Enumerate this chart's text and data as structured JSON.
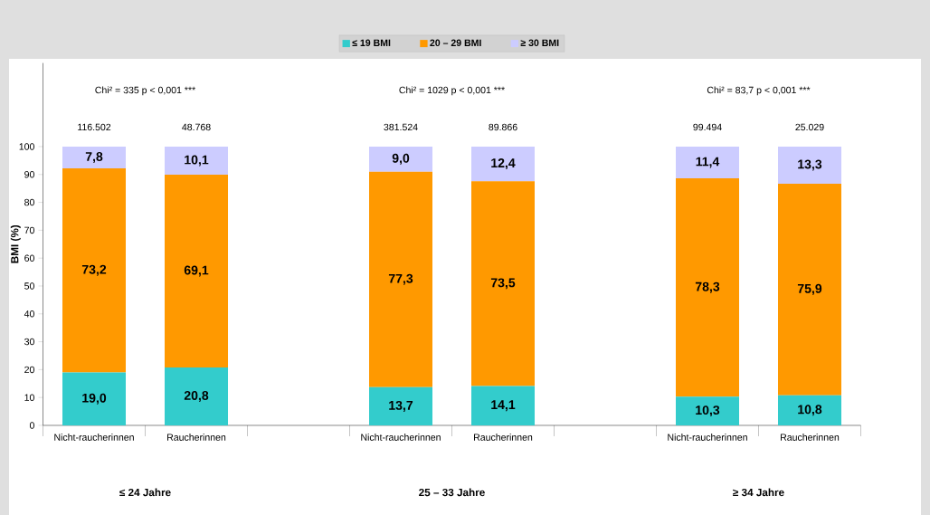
{
  "chart_data": {
    "type": "bar",
    "stacked": true,
    "categories": [
      "Nicht-raucherinnen",
      "Raucherinnen",
      null,
      "Nicht-raucherinnen",
      "Raucherinnen",
      null,
      "Nicht-raucherinnen",
      "Raucherinnen"
    ],
    "series": [
      {
        "name": "≤ 19 BMI",
        "color": "#33cccc",
        "values": [
          19.0,
          20.8,
          null,
          13.7,
          14.1,
          null,
          10.3,
          10.8
        ],
        "value_labels": [
          "19,0",
          "20,8",
          null,
          "13,7",
          "14,1",
          null,
          "10,3",
          "10,8"
        ]
      },
      {
        "name": "20 – 29 BMI",
        "color": "#ff9900",
        "values": [
          73.2,
          69.1,
          null,
          77.3,
          73.5,
          null,
          78.3,
          75.9
        ],
        "value_labels": [
          "73,2",
          "69,1",
          null,
          "77,3",
          "73,5",
          null,
          "78,3",
          "75,9"
        ]
      },
      {
        "name": "≥ 30 BMI",
        "color": "#ccccff",
        "values": [
          7.8,
          10.1,
          null,
          9.0,
          12.4,
          null,
          11.4,
          13.3
        ],
        "value_labels": [
          "7,8",
          "10,1",
          null,
          "9,0",
          "12,4",
          null,
          "11,4",
          "13,3"
        ]
      }
    ],
    "ylabel": "BMI (%)",
    "ylim": [
      0,
      130
    ],
    "yticks": [
      0,
      10,
      20,
      30,
      40,
      50,
      60,
      70,
      80,
      90,
      100
    ],
    "legend": "top",
    "grid": false,
    "annotations": [
      "Chi² = 335   p < 0,001 ***",
      "Chi² = 1029   p < 0,001 ***",
      "Chi² = 83,7   p < 0,001 ***",
      "116.502",
      "48.768",
      "381.524",
      "89.866",
      "99.494",
      "25.029",
      "≤ 24 Jahre",
      "25 – 33 Jahre",
      "≥ 34 Jahre"
    ]
  }
}
